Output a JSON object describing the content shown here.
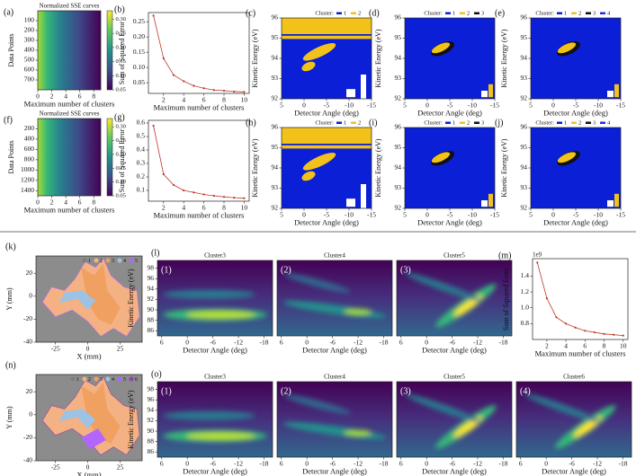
{
  "chart_data": [
    {
      "type": "heatmap",
      "label": "(a)",
      "title": "Normalized SSE curves",
      "xlabel": "Maximum number of clusters",
      "ylabel": "Data Points",
      "xlim": [
        0,
        9
      ],
      "xticks": [
        0,
        2,
        4,
        6,
        8
      ],
      "ylim": [
        0,
        800
      ],
      "yaxis_inverted": true,
      "yticks": [
        100,
        200,
        300,
        400,
        500,
        600,
        700
      ],
      "clim": [
        0.05,
        0.33
      ],
      "cticks": [
        {
          "value": 0.05,
          "label": "0.05"
        },
        {
          "value": 0.1,
          "label": "0.10"
        },
        {
          "value": 0.15,
          "label": "0.15"
        },
        {
          "value": 0.2,
          "label": "0.20"
        },
        {
          "value": 0.25,
          "label": "0.25"
        },
        {
          "value": 0.3,
          "label": "0.30"
        }
      ]
    },
    {
      "type": "line",
      "label": "(b)",
      "xlabel": "Maximum number of clusters",
      "ylabel": "Sum of Squared Error",
      "color": "#c0392b",
      "x": [
        1,
        2,
        3,
        4,
        5,
        6,
        7,
        8,
        9,
        10
      ],
      "values": [
        0.27,
        0.13,
        0.075,
        0.055,
        0.04,
        0.032,
        0.026,
        0.024,
        0.021,
        0.02
      ],
      "xlim": [
        0.5,
        10.5
      ],
      "xticks": [
        2,
        4,
        6,
        8,
        10
      ],
      "ylim": [
        0.015,
        0.28
      ],
      "yticks": [
        {
          "value": 0.05,
          "label": "0.05"
        },
        {
          "value": 0.1,
          "label": "0.10"
        },
        {
          "value": 0.15,
          "label": "0.15"
        },
        {
          "value": 0.2,
          "label": "0.20"
        },
        {
          "value": 0.25,
          "label": "0.25"
        }
      ]
    },
    {
      "type": "cluster",
      "label": "(c)",
      "legend_title": "Cluster:",
      "legend": [
        "1",
        "2"
      ],
      "colors": [
        "#0a1fd6",
        "#f2c21b"
      ],
      "xlabel": "Detector Angle (deg)",
      "ylabel": "Kinetic Energy (eV)",
      "xlim": [
        5,
        -15
      ],
      "xticks": [
        5,
        0,
        -5,
        -10,
        -15
      ],
      "ylim": [
        92,
        96
      ],
      "yticks": [
        92,
        93,
        94,
        95,
        96
      ]
    },
    {
      "type": "cluster",
      "label": "(d)",
      "legend_title": "Cluster:",
      "legend": [
        "1",
        "2",
        "3"
      ],
      "colors": [
        "#0a1fd6",
        "#f2c21b",
        "#111111"
      ],
      "xlabel": "Detector Angle (deg)",
      "ylabel": "Kinetic Energy (eV)",
      "xlim": [
        5,
        -15
      ],
      "xticks": [
        5,
        0,
        -5,
        -10,
        -15
      ],
      "ylim": [
        92,
        96
      ],
      "yticks": [
        92,
        93,
        94,
        95,
        96
      ]
    },
    {
      "type": "cluster",
      "label": "(e)",
      "legend_title": "Cluster:",
      "legend": [
        "1",
        "2",
        "3",
        "4"
      ],
      "colors": [
        "#0a1fd6",
        "#f2c21b",
        "#111111",
        "#1c2fe8"
      ],
      "xlabel": "Detector Angle (deg)",
      "ylabel": "Kinetic Energy (eV)",
      "xlim": [
        5,
        -15
      ],
      "xticks": [
        5,
        0,
        -5,
        -10,
        -15
      ],
      "ylim": [
        92,
        96
      ],
      "yticks": [
        92,
        93,
        94,
        95,
        96
      ]
    },
    {
      "type": "heatmap",
      "label": "(f)",
      "title": "Normalized SSE curves",
      "xlabel": "Maximum number of clusters",
      "ylabel": "Data Points",
      "xlim": [
        0,
        9
      ],
      "xticks": [
        0,
        2,
        4,
        6,
        8
      ],
      "ylim": [
        0,
        1500
      ],
      "yaxis_inverted": true,
      "yticks": [
        200,
        400,
        600,
        800,
        1000,
        1200,
        1400
      ],
      "clim": [
        0.05,
        0.33
      ],
      "cticks": [
        {
          "value": 0.05,
          "label": "0.05"
        },
        {
          "value": 0.1,
          "label": "0.10"
        },
        {
          "value": 0.15,
          "label": "0.15"
        },
        {
          "value": 0.2,
          "label": "0.20"
        },
        {
          "value": 0.25,
          "label": "0.25"
        },
        {
          "value": 0.3,
          "label": "0.30"
        }
      ]
    },
    {
      "type": "line",
      "label": "(g)",
      "xlabel": "Maximum number of clusters",
      "ylabel": "Sum of Squared Error",
      "color": "#c0392b",
      "x": [
        1,
        2,
        3,
        4,
        5,
        6,
        7,
        8,
        9,
        10
      ],
      "values": [
        0.58,
        0.22,
        0.14,
        0.1,
        0.085,
        0.07,
        0.06,
        0.052,
        0.046,
        0.042
      ],
      "xlim": [
        0.5,
        10.5
      ],
      "xticks": [
        2,
        4,
        6,
        8,
        10
      ],
      "ylim": [
        0.02,
        0.62
      ],
      "yticks": [
        0.1,
        0.2,
        0.3,
        0.4,
        0.5,
        0.6
      ]
    },
    {
      "type": "cluster",
      "label": "(h)",
      "legend_title": "Cluster:",
      "legend": [
        "1",
        "2"
      ],
      "colors": [
        "#0a1fd6",
        "#f2c21b"
      ],
      "xlabel": "Detector Angle (deg)",
      "ylabel": "Kinetic Energy (eV)",
      "xlim": [
        5,
        -15
      ],
      "xticks": [
        5,
        0,
        -5,
        -10,
        -15
      ],
      "ylim": [
        92,
        96
      ],
      "yticks": [
        92,
        93,
        94,
        95,
        96
      ]
    },
    {
      "type": "cluster",
      "label": "(i)",
      "legend_title": "Cluster:",
      "legend": [
        "1",
        "2",
        "3"
      ],
      "colors": [
        "#0a1fd6",
        "#f2c21b",
        "#111111"
      ],
      "xlabel": "Detector Angle (deg)",
      "ylabel": "Kinetic Energy (eV)",
      "xlim": [
        5,
        -15
      ],
      "xticks": [
        5,
        0,
        -5,
        -10,
        -15
      ],
      "ylim": [
        92,
        96
      ],
      "yticks": [
        92,
        93,
        94,
        95,
        96
      ]
    },
    {
      "type": "cluster",
      "label": "(j)",
      "legend_title": "Cluster:",
      "legend": [
        "1",
        "2",
        "3",
        "4"
      ],
      "colors": [
        "#0a1fd6",
        "#f2c21b",
        "#111111",
        "#1c2fe8"
      ],
      "xlabel": "Detector Angle (deg)",
      "ylabel": "Kinetic Energy (eV)",
      "xlim": [
        5,
        -15
      ],
      "xticks": [
        5,
        0,
        -5,
        -10,
        -15
      ],
      "ylim": [
        92,
        96
      ],
      "yticks": [
        92,
        93,
        94,
        95,
        96
      ]
    },
    {
      "type": "map",
      "label": "(k)",
      "legend": [
        "1",
        "2",
        "3",
        "4",
        "5"
      ],
      "colors": [
        "#7f7f7f",
        "#f4b183",
        "#f0a060",
        "#9cc3e6",
        "#b266ff"
      ],
      "xlabel": "X (mm)",
      "ylabel": "Y (mm)",
      "xlim": [
        -40,
        42
      ],
      "xticks": [
        -25,
        0,
        25
      ],
      "ylim": [
        -40,
        35
      ],
      "yticks": [
        -40,
        -20,
        0,
        20
      ]
    },
    {
      "type": "spectra",
      "label": "(l)",
      "subplots": [
        {
          "title": "Cluster3",
          "label": "(1)"
        },
        {
          "title": "Cluster4",
          "label": "(2)"
        },
        {
          "title": "Cluster5",
          "label": "(3)"
        }
      ],
      "xlabel": "Detector Angle (deg)",
      "ylabel": "Kinetic Energy (eV)",
      "xlim": [
        7,
        -20
      ],
      "xticks": [
        6,
        0,
        -6,
        -12,
        -18
      ],
      "ylim": [
        85,
        99.5
      ],
      "yticks": [
        86,
        88,
        90,
        92,
        94,
        96,
        98
      ]
    },
    {
      "type": "line",
      "label": "(m)",
      "offset_label": "1e9",
      "xlabel": "Maximum number of clusters",
      "ylabel": "Sum of Squared Error",
      "color": "#c0392b",
      "x": [
        1,
        2,
        3,
        4,
        5,
        6,
        7,
        8,
        9,
        10
      ],
      "values": [
        1.57,
        1.12,
        0.88,
        0.8,
        0.75,
        0.71,
        0.69,
        0.67,
        0.66,
        0.65
      ],
      "xlim": [
        0.5,
        10.5
      ],
      "xticks": [
        2,
        4,
        6,
        8,
        10
      ],
      "ylim": [
        0.6,
        1.62
      ],
      "yticks": [
        {
          "value": 0.8,
          "label": "0.8"
        },
        {
          "value": 1.0,
          "label": "1.0"
        },
        {
          "value": 1.2,
          "label": "1.2"
        },
        {
          "value": 1.4,
          "label": "1.4"
        }
      ]
    },
    {
      "type": "map",
      "label": "(n)",
      "legend": [
        "1",
        "2",
        "3",
        "4",
        "5",
        "6"
      ],
      "colors": [
        "#7f7f7f",
        "#f4b183",
        "#f0a060",
        "#9cc3e6",
        "#b266ff",
        "#8e44ad"
      ],
      "xlabel": "X (mm)",
      "ylabel": "Y (mm)",
      "xlim": [
        -40,
        42
      ],
      "xticks": [
        -25,
        0,
        25
      ],
      "ylim": [
        -40,
        35
      ],
      "yticks": [
        -40,
        -20,
        0,
        20
      ]
    },
    {
      "type": "spectra",
      "label": "(o)",
      "subplots": [
        {
          "title": "Cluster3",
          "label": "(1)"
        },
        {
          "title": "Cluster4",
          "label": "(2)"
        },
        {
          "title": "Cluster5",
          "label": "(3)"
        },
        {
          "title": "Cluster6",
          "label": "(4)"
        }
      ],
      "xlabel": "Detector Angle (deg)",
      "ylabel": "Kinetic Energy (eV)",
      "xlim": [
        7,
        -20
      ],
      "xticks": [
        6,
        0,
        -6,
        -12,
        -18
      ],
      "ylim": [
        85,
        99.5
      ],
      "yticks": [
        86,
        88,
        90,
        92,
        94,
        96,
        98
      ]
    }
  ]
}
